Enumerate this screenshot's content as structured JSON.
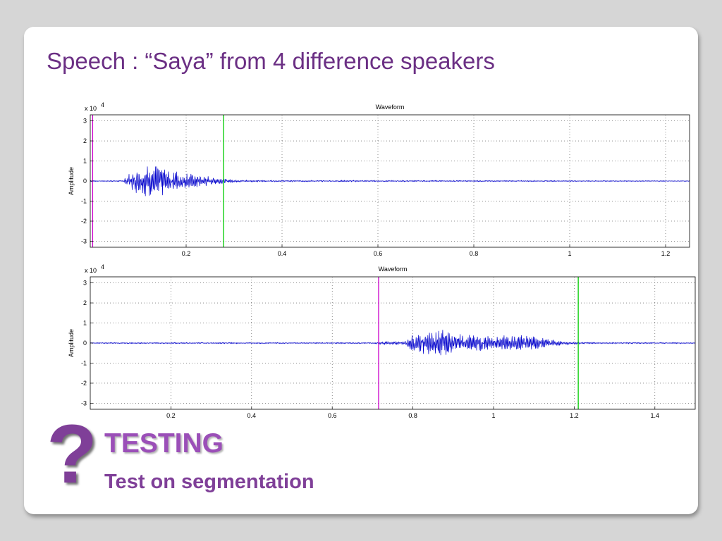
{
  "slide": {
    "title": "Speech : “Saya” from 4 difference speakers",
    "question_icon": "question-mark-icon",
    "question_glyph": "?",
    "heading": "TESTING",
    "subheading": "Test on segmentation"
  },
  "colors": {
    "title": "#6b2f84",
    "heading": "#9b4fb8",
    "waveform": "#0000cc",
    "start_marker": "#cc00cc",
    "end_marker": "#00cc00"
  },
  "chart_data": [
    {
      "type": "line",
      "title": "Waveform",
      "ylabel": "Amplitude",
      "xlabel": "",
      "y_exponent_label": "x 10",
      "y_exponent": "4",
      "xlim": [
        0,
        1.25
      ],
      "ylim": [
        -3.3,
        3.3
      ],
      "xticks": [
        0.2,
        0.4,
        0.6,
        0.8,
        1,
        1.2
      ],
      "xtick_labels": [
        "0.2",
        "0.4",
        "0.6",
        "0.8",
        "1",
        "1.2"
      ],
      "yticks": [
        3,
        2,
        1,
        0,
        -1,
        -2,
        -3
      ],
      "ytick_labels": [
        "3",
        "2",
        "1",
        "0",
        "-1",
        "-2",
        "-3"
      ],
      "grid": true,
      "markers": [
        {
          "name": "start",
          "x": 0.005,
          "color": "#cc00cc"
        },
        {
          "name": "end",
          "x": 0.278,
          "color": "#00cc00"
        }
      ],
      "envelope": [
        [
          0,
          0.03
        ],
        [
          0.07,
          0.03
        ],
        [
          0.075,
          0.35
        ],
        [
          0.09,
          0.55
        ],
        [
          0.11,
          0.75
        ],
        [
          0.14,
          0.82
        ],
        [
          0.17,
          0.65
        ],
        [
          0.2,
          0.45
        ],
        [
          0.23,
          0.32
        ],
        [
          0.26,
          0.2
        ],
        [
          0.28,
          0.12
        ],
        [
          0.3,
          0.06
        ],
        [
          0.34,
          0.04
        ],
        [
          1.25,
          0.02
        ]
      ]
    },
    {
      "type": "line",
      "title": "Waveform",
      "ylabel": "Amplitude",
      "xlabel": "",
      "y_exponent_label": "x 10",
      "y_exponent": "4",
      "xlim": [
        0,
        1.5
      ],
      "ylim": [
        -3.3,
        3.3
      ],
      "xticks": [
        0.2,
        0.4,
        0.6,
        0.8,
        1,
        1.2,
        1.4
      ],
      "xtick_labels": [
        "0.2",
        "0.4",
        "0.6",
        "0.8",
        "1",
        "1.2",
        "1.4"
      ],
      "yticks": [
        3,
        2,
        1,
        0,
        -1,
        -2,
        -3
      ],
      "ytick_labels": [
        "3",
        "2",
        "1",
        "0",
        "-1",
        "-2",
        "-3"
      ],
      "grid": true,
      "markers": [
        {
          "name": "start",
          "x": 0.715,
          "color": "#cc00cc"
        },
        {
          "name": "end",
          "x": 1.21,
          "color": "#00cc00"
        }
      ],
      "envelope": [
        [
          0,
          0.03
        ],
        [
          0.7,
          0.03
        ],
        [
          0.74,
          0.08
        ],
        [
          0.78,
          0.1
        ],
        [
          0.8,
          0.45
        ],
        [
          0.84,
          0.6
        ],
        [
          0.87,
          0.72
        ],
        [
          0.9,
          0.55
        ],
        [
          0.95,
          0.4
        ],
        [
          1.0,
          0.38
        ],
        [
          1.05,
          0.42
        ],
        [
          1.1,
          0.35
        ],
        [
          1.15,
          0.18
        ],
        [
          1.18,
          0.08
        ],
        [
          1.22,
          0.04
        ],
        [
          1.5,
          0.03
        ]
      ]
    }
  ]
}
